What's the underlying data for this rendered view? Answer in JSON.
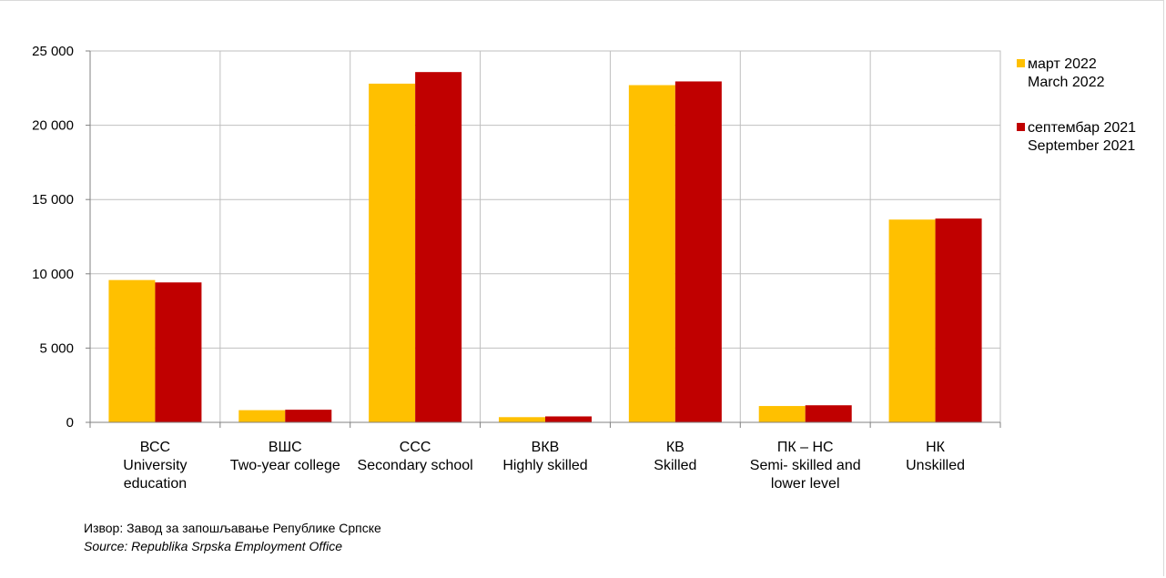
{
  "chart_data": {
    "type": "bar",
    "categories": [
      [
        "ВСС",
        "University",
        "education"
      ],
      [
        "ВШС",
        "Two-year college"
      ],
      [
        "ССС",
        "Secondary school"
      ],
      [
        "ВКВ",
        "Highly skilled"
      ],
      [
        "КВ",
        "Skilled"
      ],
      [
        "ПК – НС",
        "Semi- skilled and",
        "lower level"
      ],
      [
        "НК",
        "Unskilled"
      ]
    ],
    "series": [
      {
        "name": [
          "март 2022",
          "March 2022"
        ],
        "color": "#FFC000",
        "values": [
          9580,
          820,
          22800,
          350,
          22700,
          1100,
          13650
        ]
      },
      {
        "name": [
          "септембар 2021",
          "September 2021"
        ],
        "color": "#C00000",
        "values": [
          9420,
          850,
          23580,
          400,
          22950,
          1150,
          13720
        ]
      }
    ],
    "ylim": [
      0,
      25000
    ],
    "yticks": [
      0,
      5000,
      10000,
      15000,
      20000,
      25000
    ],
    "ytick_labels": [
      "0",
      "5 000",
      "10 000",
      "15 000",
      "20 000",
      "25 000"
    ],
    "grid": true,
    "legend_position": "right",
    "title": "",
    "xlabel": "",
    "ylabel": ""
  },
  "source": {
    "line1": "Извор: Завод за запошљавање Републике Српске",
    "line2": "Source: Republika Srpska Employment Office"
  }
}
